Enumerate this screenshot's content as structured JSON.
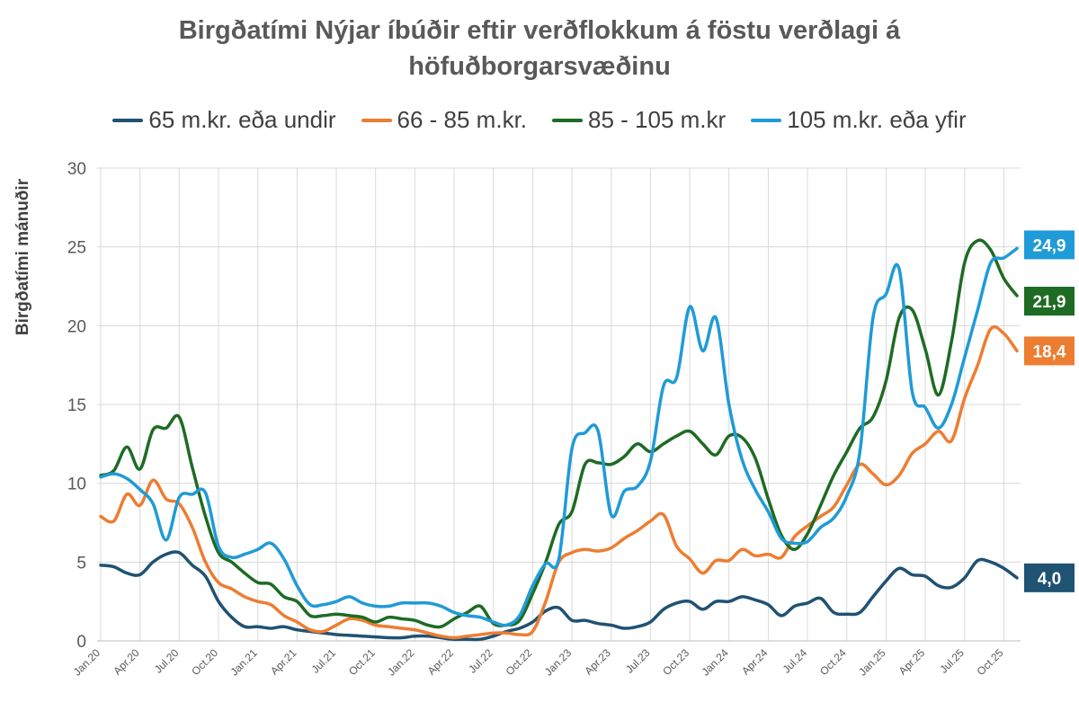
{
  "chart_data": {
    "type": "line",
    "title_line1": "Birgðatími Nýjar íbúðir eftir verðflokkum á föstu verðlagi á",
    "title_line2": "höfuðborgarsvæðinu",
    "ylabel": "Birgðatími mánuðir",
    "xlabel": "",
    "ylim": [
      0,
      30
    ],
    "yticks": [
      "0",
      "5",
      "10",
      "15",
      "20",
      "25",
      "30"
    ],
    "grid": true,
    "legend_position": "top",
    "x_tick_labels": [
      "Jan.20",
      "Apr.20",
      "Jul.20",
      "Oct.20",
      "Jan.21",
      "Apr.21",
      "Jul.21",
      "Oct.21",
      "Jan.22",
      "Apr.22",
      "Jul.22",
      "Oct.22",
      "Jan.23",
      "Apr.23",
      "Jul.23",
      "Oct.23",
      "Jan.24",
      "Apr.24",
      "Jul.24",
      "Oct.24",
      "Jan.25",
      "Apr.25",
      "Jul.25",
      "Oct.25"
    ],
    "x_tick_indices": [
      0,
      3,
      6,
      9,
      12,
      15,
      18,
      21,
      24,
      27,
      30,
      33,
      36,
      39,
      42,
      45,
      48,
      51,
      54,
      57,
      60,
      63,
      66,
      69
    ],
    "n_months": 71,
    "series": [
      {
        "name": "65 m.kr. eða undir",
        "color": "#1f5273",
        "end_label": "4,0",
        "values": [
          4.8,
          4.7,
          4.3,
          4.2,
          5.0,
          5.5,
          5.6,
          4.8,
          4.1,
          2.5,
          1.5,
          0.9,
          0.9,
          0.8,
          0.9,
          0.7,
          0.6,
          0.5,
          0.4,
          0.35,
          0.3,
          0.25,
          0.2,
          0.2,
          0.3,
          0.3,
          0.2,
          0.1,
          0.1,
          0.1,
          0.3,
          0.6,
          0.8,
          1.2,
          1.9,
          2.1,
          1.3,
          1.3,
          1.1,
          1.0,
          0.8,
          0.9,
          1.2,
          2.0,
          2.4,
          2.5,
          2.0,
          2.5,
          2.5,
          2.8,
          2.6,
          2.3,
          1.6,
          2.2,
          2.4,
          2.7,
          1.8,
          1.7,
          1.8,
          2.8,
          3.8,
          4.6,
          4.2,
          4.1,
          3.5,
          3.4,
          4.0,
          5.1,
          5.0,
          4.6,
          4.0
        ]
      },
      {
        "name": "66 - 85 m.kr.",
        "color": "#ed7d31",
        "end_label": "18,4",
        "values": [
          7.9,
          7.6,
          9.3,
          8.6,
          10.2,
          9.0,
          8.7,
          7.2,
          5.0,
          3.7,
          3.3,
          2.8,
          2.5,
          2.3,
          1.6,
          1.2,
          0.7,
          0.6,
          1.0,
          1.4,
          1.3,
          1.0,
          0.9,
          0.8,
          0.7,
          0.5,
          0.3,
          0.2,
          0.3,
          0.4,
          0.5,
          0.5,
          0.4,
          0.6,
          2.5,
          5.0,
          5.6,
          5.8,
          5.7,
          5.9,
          6.5,
          7.0,
          7.6,
          8.0,
          6.0,
          5.2,
          4.3,
          5.1,
          5.1,
          5.8,
          5.4,
          5.5,
          5.3,
          6.6,
          7.3,
          7.9,
          8.5,
          9.9,
          11.2,
          10.6,
          9.9,
          10.5,
          11.9,
          12.5,
          13.3,
          12.7,
          15.4,
          17.5,
          19.8,
          19.5,
          18.4
        ]
      },
      {
        "name": "85 - 105 m.kr",
        "color": "#1e6b24",
        "end_label": "21,9",
        "values": [
          10.5,
          10.8,
          12.3,
          10.9,
          13.4,
          13.5,
          14.2,
          11.0,
          7.9,
          5.6,
          5.0,
          4.3,
          3.7,
          3.6,
          2.8,
          2.5,
          1.6,
          1.6,
          1.7,
          1.6,
          1.5,
          1.2,
          1.5,
          1.4,
          1.3,
          1.0,
          0.9,
          1.4,
          1.8,
          2.2,
          1.1,
          1.0,
          1.3,
          3.0,
          5.0,
          7.4,
          8.2,
          11.2,
          11.3,
          11.2,
          11.7,
          12.5,
          12.0,
          12.5,
          13.0,
          13.3,
          12.5,
          11.8,
          13.0,
          12.9,
          11.6,
          9.0,
          6.7,
          5.8,
          6.8,
          8.6,
          10.5,
          12.0,
          13.5,
          14.2,
          16.5,
          20.5,
          21.0,
          18.5,
          15.6,
          19.0,
          24.0,
          25.4,
          24.8,
          23.0,
          21.9
        ]
      },
      {
        "name": "105 m.kr. eða yfir",
        "color": "#1f9bd7",
        "end_label": "24,9",
        "values": [
          10.4,
          10.6,
          10.3,
          9.6,
          8.7,
          6.4,
          9.1,
          9.3,
          9.4,
          6.0,
          5.3,
          5.5,
          5.8,
          6.2,
          5.2,
          3.5,
          2.3,
          2.3,
          2.5,
          2.8,
          2.4,
          2.2,
          2.2,
          2.4,
          2.4,
          2.4,
          2.2,
          1.8,
          1.6,
          1.5,
          1.2,
          1.0,
          1.6,
          3.5,
          4.9,
          5.2,
          12.2,
          13.2,
          13.3,
          8.0,
          9.5,
          9.8,
          11.4,
          16.2,
          16.7,
          21.2,
          18.4,
          20.5,
          15.0,
          11.5,
          9.6,
          8.2,
          6.5,
          6.2,
          6.3,
          7.2,
          7.8,
          9.2,
          12.0,
          20.5,
          22.0,
          23.6,
          15.8,
          14.8,
          13.5,
          15.0,
          18.0,
          21.0,
          24.0,
          24.3,
          24.9
        ]
      }
    ]
  }
}
